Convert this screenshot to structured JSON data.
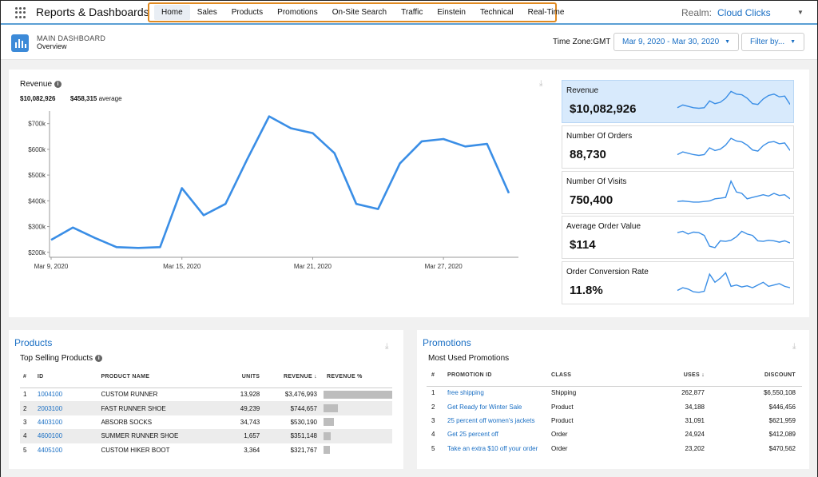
{
  "header": {
    "app_title": "Reports & Dashboards",
    "nav": [
      "Home",
      "Sales",
      "Products",
      "Promotions",
      "On-Site Search",
      "Traffic",
      "Einstein",
      "Technical",
      "Real-Time"
    ],
    "active_nav": "Home",
    "realm_label": "Realm:",
    "realm_value": "Cloud Clicks"
  },
  "subheader": {
    "title": "MAIN DASHBOARD",
    "subtitle": "Overview",
    "timezone_label": "Time Zone:GMT",
    "date_range": "Mar 9, 2020 - Mar 30, 2020",
    "filter_label": "Filter by..."
  },
  "revenue": {
    "title": "Revenue",
    "total": "$10,082,926",
    "avg_value": "$458,315",
    "avg_label": "average"
  },
  "chart_data": {
    "type": "line",
    "title": "Revenue",
    "color": "#3a8ee6",
    "x_tick_labels": [
      "Mar 9, 2020",
      "Mar 15, 2020",
      "Mar 21, 2020",
      "Mar 27, 2020"
    ],
    "y_tick_labels": [
      "$700k",
      "$600k",
      "$500k",
      "$400k",
      "$300k",
      "$200k"
    ],
    "ylim": [
      190000,
      730000
    ],
    "x": [
      "2020-03-09",
      "2020-03-10",
      "2020-03-11",
      "2020-03-12",
      "2020-03-13",
      "2020-03-14",
      "2020-03-15",
      "2020-03-16",
      "2020-03-17",
      "2020-03-18",
      "2020-03-19",
      "2020-03-20",
      "2020-03-21",
      "2020-03-22",
      "2020-03-23",
      "2020-03-24",
      "2020-03-25",
      "2020-03-26",
      "2020-03-27",
      "2020-03-28",
      "2020-03-29",
      "2020-03-30"
    ],
    "values": [
      248000,
      296000,
      256000,
      220000,
      217000,
      220000,
      449000,
      344000,
      388000,
      562000,
      728000,
      682000,
      663000,
      585000,
      388000,
      368000,
      545000,
      631000,
      640000,
      611000,
      621000,
      430000
    ]
  },
  "kpis": [
    {
      "label": "Revenue",
      "value": "$10,082,926",
      "selected": true,
      "spark": [
        0.3,
        0.4,
        0.35,
        0.3,
        0.28,
        0.3,
        0.55,
        0.45,
        0.5,
        0.65,
        0.9,
        0.8,
        0.78,
        0.65,
        0.45,
        0.42,
        0.62,
        0.75,
        0.8,
        0.7,
        0.73,
        0.42
      ]
    },
    {
      "label": "Number Of Orders",
      "value": "88,730",
      "selected": false,
      "spark": [
        0.25,
        0.35,
        0.3,
        0.25,
        0.22,
        0.25,
        0.5,
        0.4,
        0.45,
        0.6,
        0.85,
        0.75,
        0.72,
        0.6,
        0.42,
        0.38,
        0.58,
        0.7,
        0.73,
        0.65,
        0.68,
        0.4
      ]
    },
    {
      "label": "Number Of Visits",
      "value": "750,400",
      "selected": false,
      "spark": [
        0.2,
        0.22,
        0.2,
        0.18,
        0.18,
        0.2,
        0.22,
        0.3,
        0.32,
        0.35,
        0.95,
        0.55,
        0.5,
        0.3,
        0.35,
        0.4,
        0.45,
        0.4,
        0.5,
        0.42,
        0.45,
        0.3
      ]
    },
    {
      "label": "Average Order Value",
      "value": "$114",
      "selected": false,
      "spark": [
        0.7,
        0.75,
        0.65,
        0.72,
        0.7,
        0.6,
        0.2,
        0.15,
        0.4,
        0.38,
        0.42,
        0.55,
        0.75,
        0.65,
        0.6,
        0.4,
        0.38,
        0.42,
        0.4,
        0.35,
        0.4,
        0.32
      ]
    },
    {
      "label": "Order Conversion Rate",
      "value": "11.8%",
      "selected": false,
      "spark": [
        0.25,
        0.35,
        0.3,
        0.2,
        0.18,
        0.22,
        0.85,
        0.55,
        0.7,
        0.9,
        0.4,
        0.45,
        0.38,
        0.42,
        0.35,
        0.45,
        0.55,
        0.4,
        0.45,
        0.5,
        0.4,
        0.35
      ]
    }
  ],
  "products": {
    "title": "Products",
    "subtitle": "Top Selling Products",
    "columns": [
      "#",
      "ID",
      "PRODUCT NAME",
      "UNITS",
      "REVENUE",
      "REVENUE %"
    ],
    "rows": [
      {
        "n": "1",
        "id": "1004100",
        "name": "CUSTOM RUNNER",
        "units": "13,928",
        "revenue": "$3,476,993",
        "pct": 1.0
      },
      {
        "n": "2",
        "id": "2003100",
        "name": "FAST RUNNER SHOE",
        "units": "49,239",
        "revenue": "$744,657",
        "pct": 0.21
      },
      {
        "n": "3",
        "id": "4403100",
        "name": "ABSORB SOCKS",
        "units": "34,743",
        "revenue": "$530,190",
        "pct": 0.15
      },
      {
        "n": "4",
        "id": "4600100",
        "name": "SUMMER RUNNER SHOE",
        "units": "1,657",
        "revenue": "$351,148",
        "pct": 0.1
      },
      {
        "n": "5",
        "id": "4405100",
        "name": "CUSTOM HIKER BOOT",
        "units": "3,364",
        "revenue": "$321,767",
        "pct": 0.09
      }
    ]
  },
  "promotions": {
    "title": "Promotions",
    "subtitle": "Most Used Promotions",
    "columns": [
      "#",
      "PROMOTION ID",
      "CLASS",
      "USES",
      "DISCOUNT"
    ],
    "rows": [
      {
        "n": "1",
        "id": "free shipping",
        "class": "Shipping",
        "uses": "262,877",
        "discount": "$6,550,108"
      },
      {
        "n": "2",
        "id": "Get Ready for Winter Sale",
        "class": "Product",
        "uses": "34,188",
        "discount": "$446,456"
      },
      {
        "n": "3",
        "id": "25 percent off women's jackets",
        "class": "Product",
        "uses": "31,091",
        "discount": "$621,959"
      },
      {
        "n": "4",
        "id": "Get 25 percent off",
        "class": "Order",
        "uses": "24,924",
        "discount": "$412,089"
      },
      {
        "n": "5",
        "id": "Take an extra $10 off your order",
        "class": "Order",
        "uses": "23,202",
        "discount": "$470,562"
      }
    ]
  }
}
